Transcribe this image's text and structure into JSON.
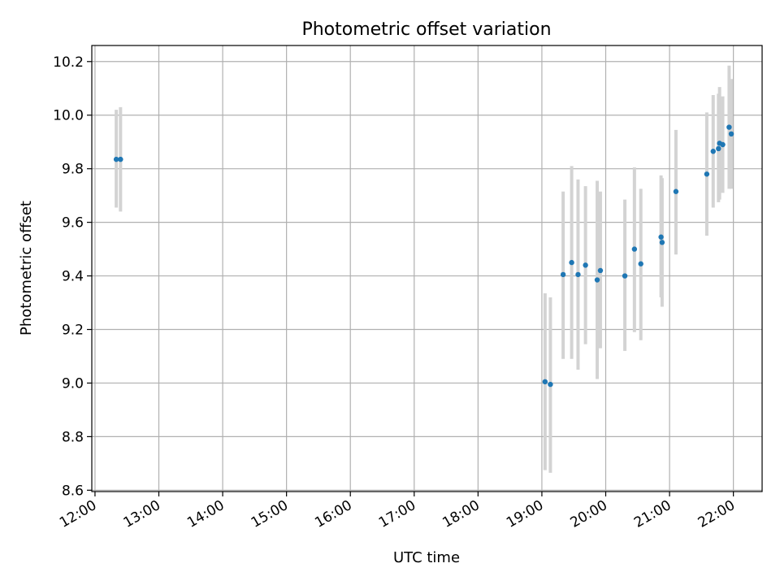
{
  "chart_data": {
    "type": "scatter",
    "title": "Photometric offset variation",
    "xlabel": "UTC time",
    "ylabel": "Photometric offset",
    "xlim": [
      "11:57",
      "22:27"
    ],
    "ylim": [
      8.595,
      10.26
    ],
    "x_ticks": [
      "12:00",
      "13:00",
      "14:00",
      "15:00",
      "16:00",
      "17:00",
      "18:00",
      "19:00",
      "20:00",
      "21:00",
      "22:00"
    ],
    "y_ticks": [
      8.6,
      8.8,
      9.0,
      9.2,
      9.4,
      9.6,
      9.8,
      10.0,
      10.2
    ],
    "grid": true,
    "colors": {
      "points": "#1f77b4",
      "errorbars": "#d3d3d3",
      "grid": "#b0b0b0"
    },
    "points": [
      {
        "x": "12:20",
        "y": 9.835,
        "err_low": 9.655,
        "err_high": 10.02
      },
      {
        "x": "12:24",
        "y": 9.835,
        "err_low": 9.64,
        "err_high": 10.03
      },
      {
        "x": "19:03",
        "y": 9.005,
        "err_low": 8.675,
        "err_high": 9.335
      },
      {
        "x": "19:08",
        "y": 8.995,
        "err_low": 8.665,
        "err_high": 9.32
      },
      {
        "x": "19:20",
        "y": 9.405,
        "err_low": 9.09,
        "err_high": 9.715
      },
      {
        "x": "19:28",
        "y": 9.45,
        "err_low": 9.09,
        "err_high": 9.81
      },
      {
        "x": "19:34",
        "y": 9.405,
        "err_low": 9.05,
        "err_high": 9.76
      },
      {
        "x": "19:41",
        "y": 9.44,
        "err_low": 9.145,
        "err_high": 9.735
      },
      {
        "x": "19:52",
        "y": 9.385,
        "err_low": 9.015,
        "err_high": 9.755
      },
      {
        "x": "19:55",
        "y": 9.42,
        "err_low": 9.13,
        "err_high": 9.715
      },
      {
        "x": "20:18",
        "y": 9.4,
        "err_low": 9.12,
        "err_high": 9.685
      },
      {
        "x": "20:27",
        "y": 9.5,
        "err_low": 9.19,
        "err_high": 9.805
      },
      {
        "x": "20:33",
        "y": 9.445,
        "err_low": 9.16,
        "err_high": 9.725
      },
      {
        "x": "20:52",
        "y": 9.545,
        "err_low": 9.32,
        "err_high": 9.775
      },
      {
        "x": "20:53",
        "y": 9.525,
        "err_low": 9.285,
        "err_high": 9.765
      },
      {
        "x": "21:06",
        "y": 9.715,
        "err_low": 9.48,
        "err_high": 9.945
      },
      {
        "x": "21:35",
        "y": 9.78,
        "err_low": 9.55,
        "err_high": 10.01
      },
      {
        "x": "21:41",
        "y": 9.865,
        "err_low": 9.655,
        "err_high": 10.075
      },
      {
        "x": "21:46",
        "y": 9.875,
        "err_low": 9.675,
        "err_high": 10.08
      },
      {
        "x": "21:47",
        "y": 9.895,
        "err_low": 9.685,
        "err_high": 10.105
      },
      {
        "x": "21:50",
        "y": 9.89,
        "err_low": 9.71,
        "err_high": 10.07
      },
      {
        "x": "21:56",
        "y": 9.955,
        "err_low": 9.725,
        "err_high": 10.185
      },
      {
        "x": "21:58",
        "y": 9.93,
        "err_low": 9.725,
        "err_high": 10.135
      }
    ]
  }
}
